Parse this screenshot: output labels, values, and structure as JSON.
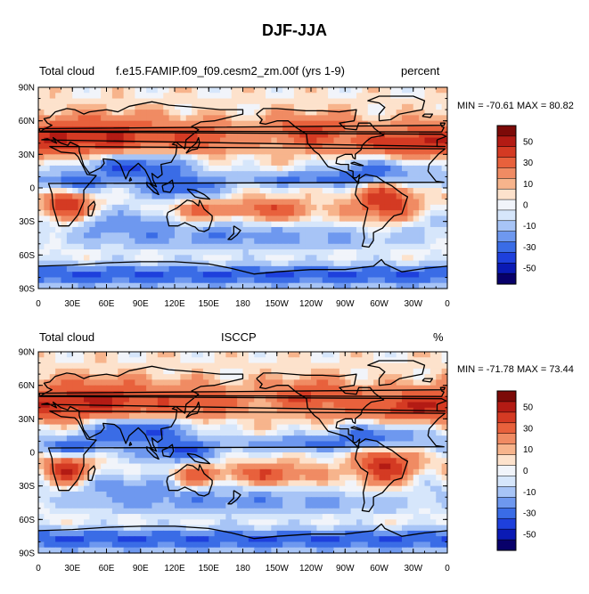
{
  "figure": {
    "title": "DJF-JJA"
  },
  "colors": {
    "palette": [
      "#08006a",
      "#0a1ab4",
      "#1e40dc",
      "#3a6ce6",
      "#6e98ef",
      "#a7c4f6",
      "#d6e6fb",
      "#f1f4fa",
      "#fde2cc",
      "#f7b48c",
      "#f08b63",
      "#e8613c",
      "#d43a23",
      "#b31b14",
      "#7c0a08"
    ],
    "coast": "#000000"
  },
  "chart_data": [
    {
      "type": "heatmap",
      "panel": "model",
      "title_left": "Total cloud",
      "title_center": "f.e15.FAMIP.f09_f09.cesm2_zm.00f (yrs 1-9)",
      "title_right": "percent",
      "stats": "MIN = -70.61 MAX =  80.82",
      "min": -70.61,
      "max": 80.82,
      "x_ticks": [
        "0",
        "30E",
        "60E",
        "90E",
        "120E",
        "150E",
        "180",
        "150W",
        "120W",
        "90W",
        "60W",
        "30W",
        "0"
      ],
      "y_ticks": [
        "90N",
        "60N",
        "30N",
        "0",
        "30S",
        "60S",
        "90S"
      ],
      "x_range": [
        0,
        360
      ],
      "y_range": [
        90,
        -90
      ],
      "colorbar_levels": [
        -60,
        -50,
        -40,
        -30,
        -20,
        -10,
        -5,
        0,
        5,
        10,
        20,
        30,
        40,
        50,
        60
      ],
      "colorbar_labels": [
        "50",
        "30",
        "10",
        "0",
        "-10",
        "-30",
        "-50"
      ]
    },
    {
      "type": "heatmap",
      "panel": "obs",
      "title_left": "Total cloud",
      "title_center": "ISCCP",
      "title_right": "%",
      "stats": "MIN = -71.78 MAX =  73.44",
      "min": -71.78,
      "max": 73.44,
      "x_ticks": [
        "0",
        "30E",
        "60E",
        "90E",
        "120E",
        "150E",
        "180",
        "150W",
        "120W",
        "90W",
        "60W",
        "30W",
        "0"
      ],
      "y_ticks": [
        "90N",
        "60N",
        "30N",
        "0",
        "30S",
        "60S",
        "90S"
      ],
      "x_range": [
        0,
        360
      ],
      "y_range": [
        90,
        -90
      ],
      "colorbar_levels": [
        -60,
        -50,
        -40,
        -30,
        -20,
        -10,
        -5,
        0,
        5,
        10,
        20,
        30,
        40,
        50,
        60
      ],
      "colorbar_labels": [
        "50",
        "30",
        "10",
        "0",
        "-10",
        "-30",
        "-50"
      ]
    }
  ]
}
